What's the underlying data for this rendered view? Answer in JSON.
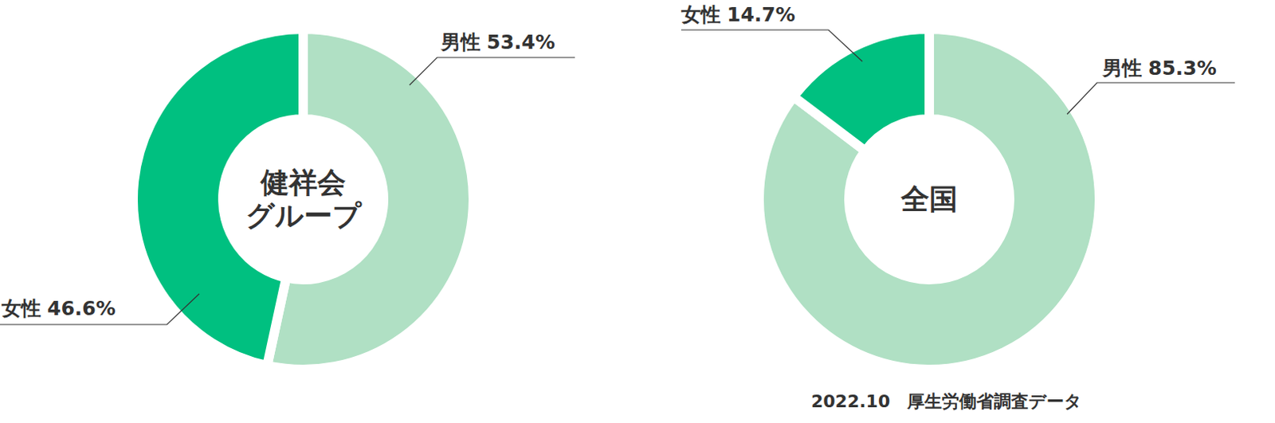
{
  "chart_data": [
    {
      "type": "pie",
      "title": "健祥会\nグループ",
      "categories": [
        "男性",
        "女性"
      ],
      "values": [
        53.4,
        46.6
      ],
      "value_labels": [
        "53.4%",
        "46.6%"
      ],
      "colors": [
        "#b0e0c4",
        "#00c080"
      ],
      "data_labels": true
    },
    {
      "type": "pie",
      "title": "全国",
      "categories": [
        "男性",
        "女性"
      ],
      "values": [
        85.3,
        14.7
      ],
      "value_labels": [
        "85.3%",
        "14.7%"
      ],
      "colors": [
        "#b0e0c4",
        "#00c080"
      ],
      "data_labels": true,
      "annotation": "2022.10　厚生労働省調査データ"
    }
  ]
}
